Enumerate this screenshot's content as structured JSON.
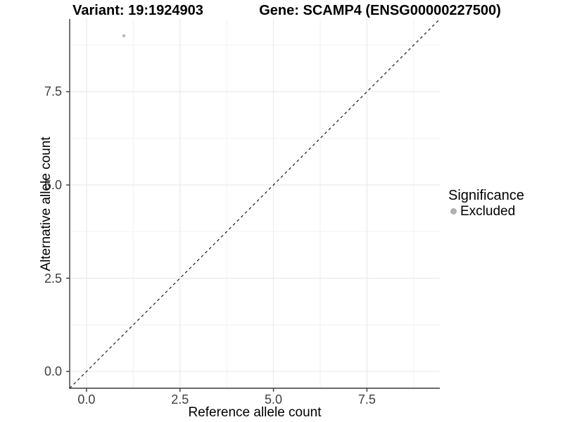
{
  "chart_data": {
    "type": "scatter",
    "title_left": "Variant: 19:1924903",
    "title_right": "Gene: SCAMP4 (ENSG00000227500)",
    "xlabel": "Reference allele count",
    "ylabel": "Alternative allele count",
    "xlim": [
      -0.45,
      9.45
    ],
    "ylim": [
      -0.45,
      9.45
    ],
    "xticks": [
      0,
      2.5,
      5,
      7.5
    ],
    "xtick_labels": [
      "0.0",
      "2.5",
      "5.0",
      "7.5"
    ],
    "yticks": [
      0,
      2.5,
      5,
      7.5
    ],
    "ytick_labels": [
      "0.0",
      "2.5",
      "5.0",
      "7.5"
    ],
    "minor_xticks": [
      1.25,
      3.75,
      6.25,
      8.75
    ],
    "minor_yticks": [
      1.25,
      3.75,
      6.25,
      8.75
    ],
    "grid": true,
    "identity_line": {
      "style": "dashed",
      "from": [
        -0.45,
        -0.45
      ],
      "to": [
        9.45,
        9.45
      ],
      "color": "#1a1a1a"
    },
    "series": [
      {
        "name": "Excluded",
        "color": "#bdbdbd",
        "point_radius": 2.3,
        "points": [
          {
            "x": 1,
            "y": 9
          }
        ]
      }
    ],
    "legend": {
      "position": "right",
      "title": "Significance",
      "items": [
        {
          "label": "Excluded",
          "color": "#b0b0b0"
        }
      ]
    },
    "colors": {
      "grid_major": "#e6e6e6",
      "grid_minor": "#f2f2f2",
      "axis_line": "#3a3a3a",
      "tick_label": "#404040"
    }
  }
}
